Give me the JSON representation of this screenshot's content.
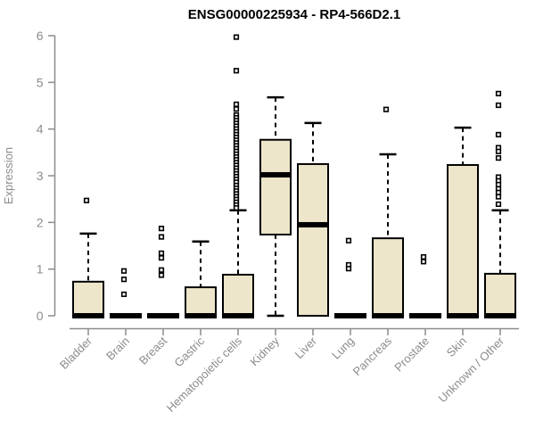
{
  "chart_data": {
    "type": "boxplot",
    "title": "ENSG00000225934 - RP4-566D2.1",
    "ylabel": "Expression",
    "xlabel": "",
    "ylim": [
      0,
      6
    ],
    "yticks": [
      0,
      1,
      2,
      3,
      4,
      5,
      6
    ],
    "grid": false,
    "legend": "none",
    "categories": [
      "Bladder",
      "Brain",
      "Breast",
      "Gastric",
      "Hematopoietic cells",
      "Kidney",
      "Liver",
      "Lung",
      "Pancreas",
      "Prostate",
      "Skin",
      "Unknown / Other"
    ],
    "series": [
      {
        "name": "Bladder",
        "q1": 0,
        "median": 0,
        "q3": 0.73,
        "whisker_low": 0,
        "whisker_high": 1.76,
        "outliers": [
          2.47
        ]
      },
      {
        "name": "Brain",
        "q1": 0,
        "median": 0,
        "q3": 0,
        "whisker_low": 0,
        "whisker_high": 0,
        "outliers": [
          0.96,
          0.78,
          0.46
        ]
      },
      {
        "name": "Breast",
        "q1": 0,
        "median": 0,
        "q3": 0,
        "whisker_low": 0,
        "whisker_high": 0,
        "outliers": [
          1.87,
          1.69,
          1.34,
          1.24,
          0.98,
          0.87
        ]
      },
      {
        "name": "Gastric",
        "q1": 0,
        "median": 0,
        "q3": 0.61,
        "whisker_low": 0,
        "whisker_high": 1.59,
        "outliers": []
      },
      {
        "name": "Hematopoietic cells",
        "q1": 0,
        "median": 0,
        "q3": 0.88,
        "whisker_low": 0,
        "whisker_high": 2.26,
        "outliers": [
          5.97,
          5.25,
          4.53,
          4.43,
          4.3,
          4.24,
          4.18,
          4.12,
          4.06,
          4.0,
          3.94,
          3.88,
          3.82,
          3.76,
          3.7,
          3.64,
          3.58,
          3.52,
          3.46,
          3.4,
          3.34,
          3.28,
          3.22,
          3.16,
          3.1,
          3.04,
          2.98,
          2.92,
          2.86,
          2.79,
          2.73,
          2.67,
          2.61,
          2.55,
          2.49,
          2.43,
          2.37,
          2.31
        ]
      },
      {
        "name": "Kidney",
        "q1": 1.74,
        "median": 3.02,
        "q3": 3.77,
        "whisker_low": 0,
        "whisker_high": 4.68,
        "outliers": []
      },
      {
        "name": "Liver",
        "q1": 0,
        "median": 1.95,
        "q3": 3.25,
        "whisker_low": 0,
        "whisker_high": 4.13,
        "outliers": []
      },
      {
        "name": "Lung",
        "q1": 0,
        "median": 0,
        "q3": 0,
        "whisker_low": 0,
        "whisker_high": 0,
        "outliers": [
          1.61,
          1.09,
          1.01
        ]
      },
      {
        "name": "Pancreas",
        "q1": 0,
        "median": 0,
        "q3": 1.66,
        "whisker_low": 0,
        "whisker_high": 3.46,
        "outliers": [
          4.42
        ]
      },
      {
        "name": "Prostate",
        "q1": 0,
        "median": 0,
        "q3": 0,
        "whisker_low": 0,
        "whisker_high": 0,
        "outliers": [
          1.26,
          1.16
        ]
      },
      {
        "name": "Skin",
        "q1": 0,
        "median": 0,
        "q3": 3.23,
        "whisker_low": 0,
        "whisker_high": 4.03,
        "outliers": []
      },
      {
        "name": "Unknown / Other",
        "q1": 0,
        "median": 0,
        "q3": 0.9,
        "whisker_low": 0,
        "whisker_high": 2.26,
        "outliers": [
          4.76,
          4.51,
          3.88,
          3.6,
          3.52,
          3.38,
          2.97,
          2.89,
          2.81,
          2.72,
          2.64,
          2.55,
          2.39
        ]
      }
    ],
    "colors": {
      "box_fill": "#EDE6CB",
      "box_border": "#000000",
      "median": "#000000",
      "whisker": "#000000",
      "outlier_stroke": "#000000",
      "outlier_fill": "#FFFFFF",
      "axis": "#8C8C8C",
      "tick_label": "#8C8C8C",
      "title": "#000000",
      "background": "#FFFFFF"
    }
  }
}
